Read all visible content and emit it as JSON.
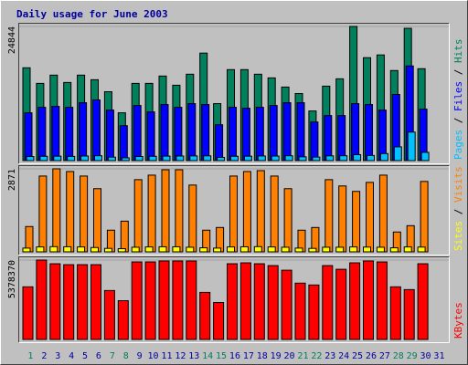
{
  "chart_data": [
    {
      "type": "bar",
      "title": "Daily usage for June 2003",
      "legend_separator": " / ",
      "ylim": [
        0,
        24844
      ],
      "yticks": [
        24844
      ],
      "series": [
        {
          "name": "Hits",
          "color": "#00805c",
          "values": [
            17190,
            14300,
            15830,
            14470,
            15830,
            14980,
            12760,
            8850,
            14300,
            14300,
            15660,
            13960,
            16000,
            19910,
            10550,
            16850,
            16850,
            16000,
            15320,
            13620,
            12420,
            9190,
            13790,
            15150,
            24844,
            19060,
            19570,
            16680,
            24500,
            17020,
            null
          ]
        },
        {
          "name": "Files",
          "color": "#0000ff",
          "values": [
            8850,
            9870,
            10040,
            9870,
            10720,
            11230,
            9360,
            6470,
            10210,
            9020,
            10380,
            9870,
            10550,
            10380,
            6640,
            9870,
            9700,
            9870,
            10210,
            10720,
            10720,
            7150,
            8340,
            8340,
            10550,
            10380,
            9360,
            12250,
            17530,
            9530,
            null
          ]
        },
        {
          "name": "Pages",
          "color": "#00c0ff",
          "values": [
            750,
            800,
            820,
            780,
            850,
            900,
            640,
            520,
            760,
            800,
            830,
            850,
            870,
            880,
            600,
            800,
            820,
            860,
            840,
            900,
            700,
            650,
            880,
            900,
            1100,
            950,
            1300,
            2550,
            5280,
            1530,
            null
          ]
        }
      ]
    },
    {
      "type": "bar",
      "ylim": [
        0,
        2871
      ],
      "yticks": [
        2871
      ],
      "series": [
        {
          "name": "Visits",
          "color": "#ff8000",
          "values": [
            874,
            2621,
            2871,
            2777,
            2621,
            2184,
            749,
            1061,
            2496,
            2652,
            2839,
            2839,
            2309,
            749,
            842,
            2621,
            2777,
            2808,
            2621,
            2184,
            749,
            842,
            2496,
            2278,
            2090,
            2402,
            2652,
            686,
            905,
            2434,
            null
          ]
        },
        {
          "name": "Sites",
          "color": "#ffff00",
          "values": [
            130,
            170,
            180,
            175,
            170,
            150,
            120,
            110,
            160,
            170,
            175,
            175,
            160,
            140,
            130,
            170,
            175,
            180,
            170,
            160,
            130,
            120,
            160,
            160,
            170,
            165,
            160,
            140,
            170,
            165,
            null
          ]
        }
      ]
    },
    {
      "type": "bar",
      "ylim": [
        0,
        5378370
      ],
      "yticks": [
        5378370
      ],
      "categories": [
        "1",
        "2",
        "3",
        "4",
        "5",
        "6",
        "7",
        "8",
        "9",
        "10",
        "11",
        "12",
        "13",
        "14",
        "15",
        "16",
        "17",
        "18",
        "19",
        "20",
        "21",
        "22",
        "23",
        "24",
        "25",
        "26",
        "27",
        "28",
        "29",
        "30",
        "31"
      ],
      "category_colors": [
        "#00805c",
        "#0000a0",
        "#0000a0",
        "#0000a0",
        "#0000a0",
        "#0000a0",
        "#00805c",
        "#00805c",
        "#0000a0",
        "#0000a0",
        "#0000a0",
        "#0000a0",
        "#0000a0",
        "#00805c",
        "#00805c",
        "#0000a0",
        "#0000a0",
        "#0000a0",
        "#0000a0",
        "#0000a0",
        "#00805c",
        "#00805c",
        "#0000a0",
        "#0000a0",
        "#0000a0",
        "#0000a0",
        "#0000a0",
        "#00805c",
        "#00805c",
        "#0000a0",
        "#0000a0"
      ],
      "series": [
        {
          "name": "KBytes",
          "color": "#ff0000",
          "values": [
            3564780,
            5378370,
            5128280,
            5065740,
            5065740,
            5065740,
            3314620,
            2626680,
            5253360,
            5253360,
            5315900,
            5315900,
            5315900,
            3189540,
            2501600,
            5128280,
            5190820,
            5128280,
            5003200,
            4690500,
            3814940,
            3689860,
            5003200,
            4753040,
            5190820,
            5315900,
            5253360,
            3564780,
            3377160,
            5128280,
            null
          ]
        }
      ]
    }
  ]
}
